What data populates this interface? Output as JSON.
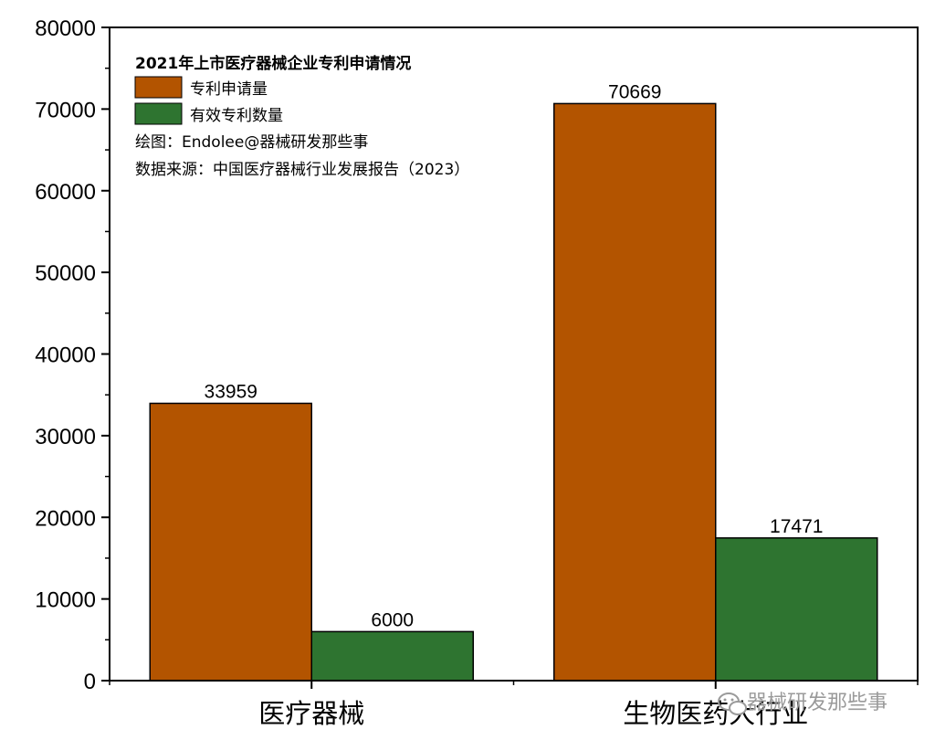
{
  "chart_data": {
    "type": "bar",
    "title": "2021年上市医疗器械企业专利申请情况",
    "categories": [
      "医疗器械",
      "生物医药大行业"
    ],
    "series": [
      {
        "name": "专利申请量",
        "values": [
          33959,
          70669
        ],
        "color": "#b35400"
      },
      {
        "name": "有效专利数量",
        "values": [
          6000,
          17471
        ],
        "color": "#2e7430"
      }
    ],
    "ylim": [
      0,
      80000
    ],
    "yticks": [
      0,
      10000,
      20000,
      30000,
      40000,
      50000,
      60000,
      70000,
      80000
    ],
    "xlabel": "",
    "ylabel": "",
    "grid": false,
    "legend_position": "top-left",
    "annotations": [
      "绘图：Endolee@器械研发那些事",
      "数据来源：中国医疗器械行业发展报告（2023）"
    ]
  },
  "watermark": {
    "text": "器械研发那些事",
    "icon": "wechat-icon"
  }
}
